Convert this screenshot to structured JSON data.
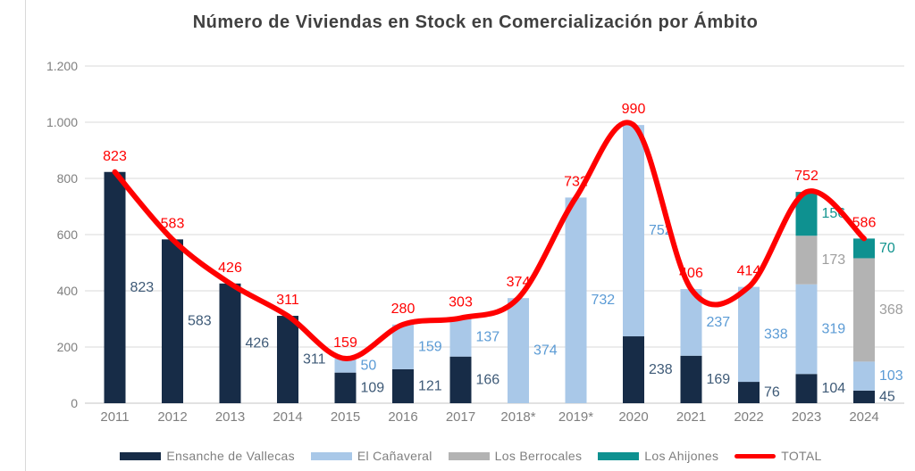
{
  "chart_data": {
    "type": "bar",
    "stacked": true,
    "title": "Número de Viviendas en Stock en Comercialización por Ámbito",
    "categories": [
      "2011",
      "2012",
      "2013",
      "2014",
      "2015",
      "2016",
      "2017",
      "2018*",
      "2019*",
      "2020",
      "2021",
      "2022",
      "2023",
      "2024"
    ],
    "series": [
      {
        "name": "Ensanche de Vallecas",
        "color": "#172c47",
        "label_color": "#3e5a77",
        "values": [
          823,
          583,
          426,
          311,
          109,
          121,
          166,
          0,
          0,
          238,
          169,
          76,
          104,
          45
        ]
      },
      {
        "name": "El Cañaveral",
        "color": "#a9c8e8",
        "label_color": "#5b9bd5",
        "values": [
          0,
          0,
          0,
          0,
          50,
          159,
          137,
          374,
          732,
          752,
          237,
          338,
          319,
          103
        ]
      },
      {
        "name": "Los Berrocales",
        "color": "#b3b3b3",
        "label_color": "#9e9e9e",
        "values": [
          0,
          0,
          0,
          0,
          0,
          0,
          0,
          0,
          0,
          0,
          0,
          0,
          173,
          368
        ]
      },
      {
        "name": "Los Ahijones",
        "color": "#0e9190",
        "label_color": "#12948f",
        "values": [
          0,
          0,
          0,
          0,
          0,
          0,
          0,
          0,
          0,
          0,
          0,
          0,
          156,
          70
        ]
      }
    ],
    "line_series": {
      "name": "TOTAL",
      "color": "#ff0000",
      "values": [
        823,
        583,
        426,
        311,
        159,
        280,
        303,
        374,
        732,
        990,
        406,
        414,
        752,
        586
      ]
    },
    "ylim": [
      0,
      1200
    ],
    "yticks": [
      0,
      200,
      400,
      600,
      800,
      1000,
      1200
    ],
    "ytick_labels": [
      "0",
      "200",
      "400",
      "600",
      "800",
      "1.000",
      "1.200"
    ],
    "grid": true,
    "legend_position": "bottom",
    "colors": {
      "axis_text": "#7f7f7f",
      "gridline": "#d9d9d9",
      "baseline": "#c6c6c6",
      "title_text": "#404040",
      "legend_text": "#7f7f7f"
    }
  }
}
